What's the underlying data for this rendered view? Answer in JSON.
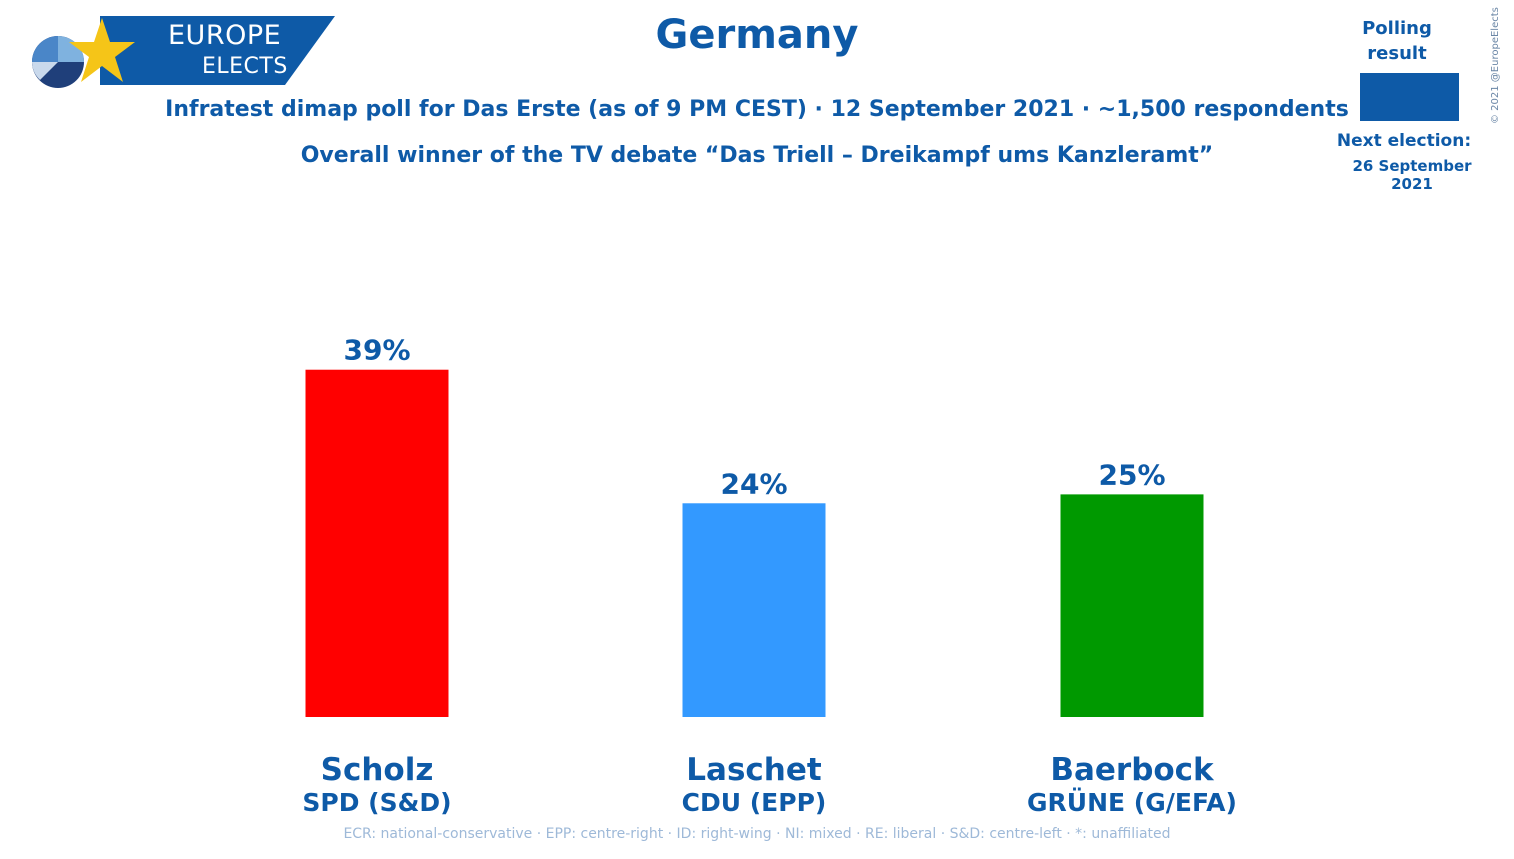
{
  "logo": {
    "line1": "EUROPE",
    "line2": "ELECTS"
  },
  "title": "Germany",
  "subtitle": "Infratest dimap poll for Das Erste (as of 9 PM CEST) · 12 September 2021 · ~1,500 respondents",
  "subtitle2": "Overall winner of the TV debate “Das Triell – Dreikampf ums Kanzleramt”",
  "legend": {
    "label": "Polling result",
    "color": "#0e5aa7"
  },
  "next_election": {
    "label": "Next election:",
    "date": "26 September 2021"
  },
  "copyright": "© 2021 @EuropeElects",
  "footnote": "ECR: national-conservative · EPP: centre-right · ID: right-wing · NI: mixed · RE: liberal · S&D: centre-left · *: unaffiliated",
  "colors": {
    "text": "#0e5aa7",
    "logo_bg": "#0e5aa7",
    "star": "#f5c518"
  },
  "chart_data": {
    "type": "bar",
    "title": "Overall winner of the TV debate “Das Triell – Dreikampf ums Kanzleramt”",
    "xlabel": "",
    "ylabel": "",
    "ylim": [
      0,
      42
    ],
    "categories": [
      "Scholz",
      "Laschet",
      "Baerbock"
    ],
    "parties": [
      "SPD (S&D)",
      "CDU (EPP)",
      "GRÜNE (G/EFA)"
    ],
    "values": [
      39,
      24,
      25
    ],
    "labels": [
      "39%",
      "24%",
      "25%"
    ],
    "bar_colors": [
      "#ff0000",
      "#3399ff",
      "#009900"
    ],
    "grid": false
  }
}
